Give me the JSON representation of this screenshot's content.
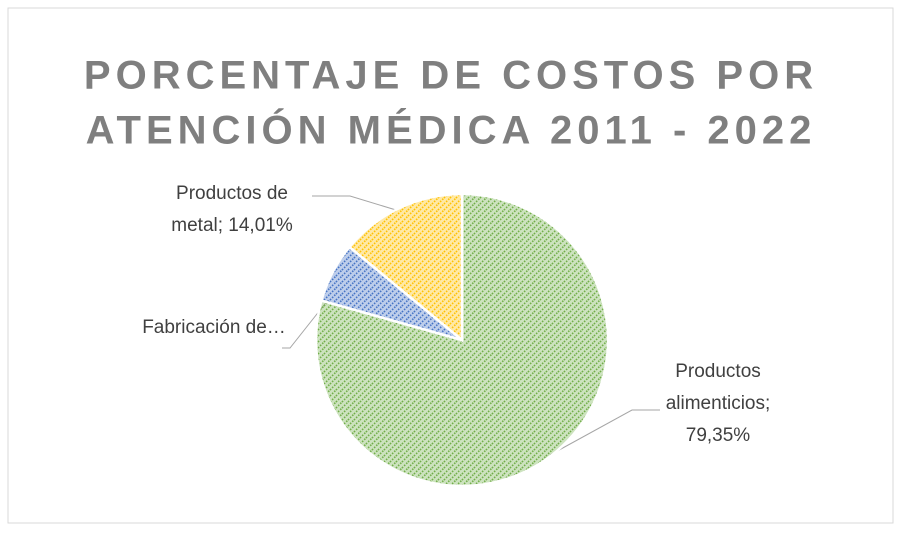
{
  "chart_data": {
    "type": "pie",
    "title": [
      "PORCENTAJE DE COSTOS POR",
      "ATENCIÓN MÉDICA 2011 - 2022"
    ],
    "labels": [
      [
        "Productos",
        "alimenticios;",
        "79,35%"
      ],
      [
        "Fabricación de…"
      ],
      [
        "Productos de",
        "metal; 14,01%"
      ]
    ],
    "values": [
      79.35,
      6.64,
      14.01
    ],
    "colors": [
      "#70ad47",
      "#4472c4",
      "#ffc000"
    ]
  }
}
